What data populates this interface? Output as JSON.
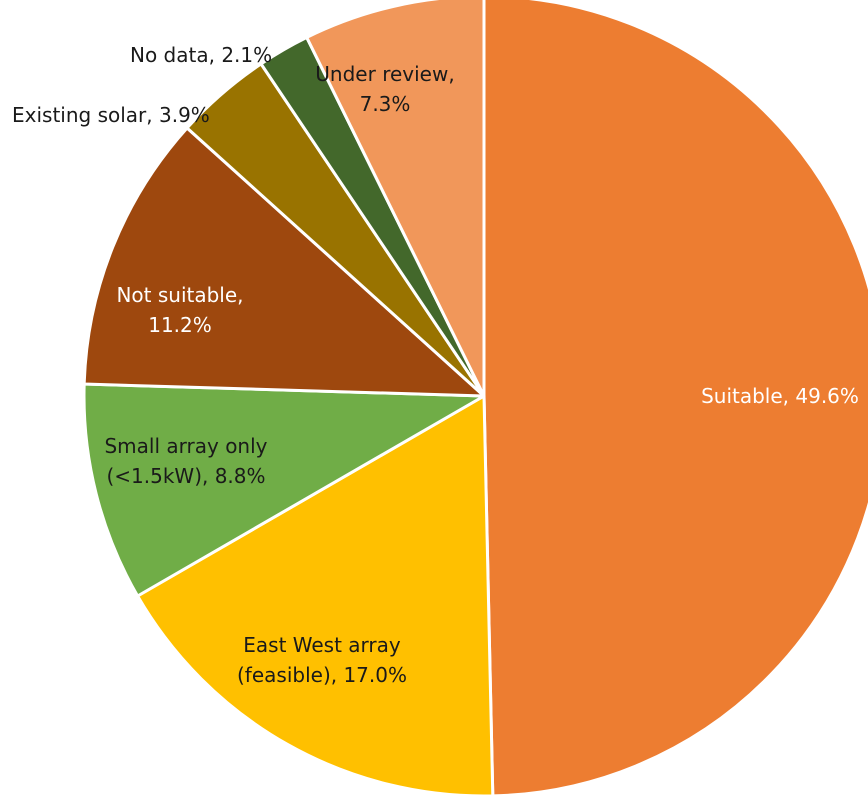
{
  "chart_data": {
    "type": "pie",
    "title": "",
    "slices": [
      {
        "label": "Suitable",
        "value": 49.6,
        "display": "Suitable, 49.6%",
        "color": "#ED7D31",
        "label_color": "#ffffff"
      },
      {
        "label": "East West array (feasible)",
        "value": 17.0,
        "display": "East West array (feasible), 17.0%",
        "color": "#FFC000",
        "label_color": "#1a1a1a"
      },
      {
        "label": "Small array only (<1.5kW)",
        "value": 8.8,
        "display": "Small array only (<1.5kW), 8.8%",
        "color": "#70AD47",
        "label_color": "#1a1a1a"
      },
      {
        "label": "Not suitable",
        "value": 11.2,
        "display": "Not suitable, 11.2%",
        "color": "#9E480E",
        "label_color": "#ffffff"
      },
      {
        "label": "Existing solar",
        "value": 3.9,
        "display": "Existing solar, 3.9%",
        "color": "#997300",
        "label_color": "#1a1a1a"
      },
      {
        "label": "No data",
        "value": 2.1,
        "display": "No data, 2.1%",
        "color": "#43682B",
        "label_color": "#1a1a1a"
      },
      {
        "label": "Under review",
        "value": 7.3,
        "display": "Under review, 7.3%",
        "color": "#F1975A",
        "label_color": "#1a1a1a"
      }
    ],
    "start": "12 o'clock",
    "direction": "clockwise",
    "legend": "none",
    "slice_border_color": "#ffffff"
  }
}
